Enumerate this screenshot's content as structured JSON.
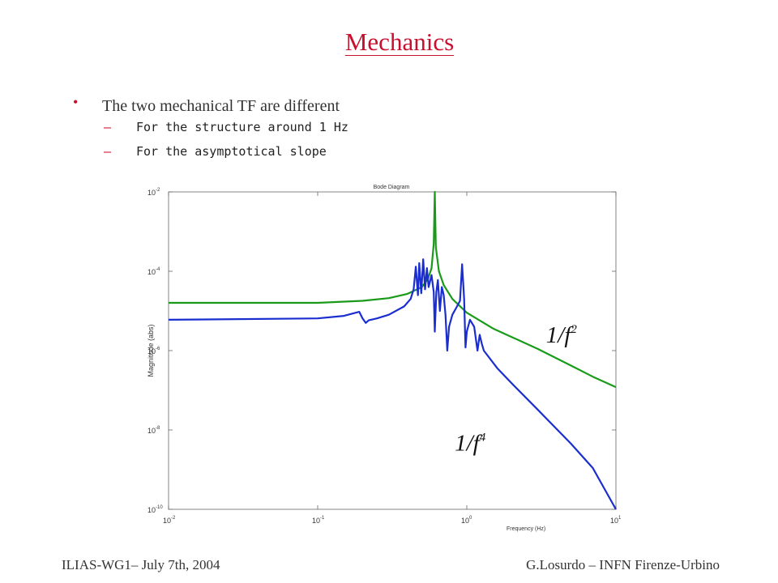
{
  "slide": {
    "title": "Mechanics",
    "bullet": "The two mechanical TF are different",
    "subbullets": [
      "For the structure around 1 Hz",
      "For the asymptotical slope"
    ],
    "footer_left": "ILIAS-WG1– July 7th, 2004",
    "footer_right": "G.Losurdo – INFN Firenze-Urbino"
  },
  "chart_data": {
    "type": "line",
    "title": "Bode Diagram",
    "xlabel": "Frequency (Hz)",
    "ylabel": "Magnitude (abs)",
    "xscale": "log",
    "yscale": "log",
    "xlim": [
      0.01,
      10
    ],
    "ylim": [
      1e-10,
      0.01
    ],
    "x_ticks": [
      {
        "value": 0.01,
        "base": "10",
        "exp": "-2"
      },
      {
        "value": 0.1,
        "base": "10",
        "exp": "-1"
      },
      {
        "value": 1,
        "base": "10",
        "exp": "0"
      },
      {
        "value": 10,
        "base": "10",
        "exp": "1"
      }
    ],
    "y_ticks": [
      {
        "value": 1e-10,
        "base": "10",
        "exp": "-10"
      },
      {
        "value": 1e-08,
        "base": "10",
        "exp": "-8"
      },
      {
        "value": 1e-06,
        "base": "10",
        "exp": "-6"
      },
      {
        "value": 0.0001,
        "base": "10",
        "exp": "-4"
      },
      {
        "value": 0.01,
        "base": "10",
        "exp": "-2"
      }
    ],
    "series": [
      {
        "color": "#1a9a1a",
        "points": [
          [
            0.01,
            1.6e-05
          ],
          [
            0.1,
            1.6e-05
          ],
          [
            0.2,
            1.8e-05
          ],
          [
            0.3,
            2.1e-05
          ],
          [
            0.4,
            2.7e-05
          ],
          [
            0.5,
            4e-05
          ],
          [
            0.55,
            6.5e-05
          ],
          [
            0.58,
            0.00012
          ],
          [
            0.6,
            0.0005
          ],
          [
            0.61,
            0.01
          ],
          [
            0.62,
            0.0004
          ],
          [
            0.65,
            0.0001
          ],
          [
            0.7,
            4.5e-05
          ],
          [
            0.8,
            2e-05
          ],
          [
            1.0,
            9e-06
          ],
          [
            1.5,
            3.6e-06
          ],
          [
            2,
            2.2e-06
          ],
          [
            3,
            1.1e-06
          ],
          [
            5,
            4.2e-07
          ],
          [
            7,
            2.2e-07
          ],
          [
            10,
            1.2e-07
          ]
        ]
      },
      {
        "color": "#1a2ed0",
        "points": [
          [
            0.01,
            6e-06
          ],
          [
            0.1,
            6.5e-06
          ],
          [
            0.15,
            7.5e-06
          ],
          [
            0.18,
            9e-06
          ],
          [
            0.19,
            9.5e-06
          ],
          [
            0.2,
            6.5e-06
          ],
          [
            0.21,
            5e-06
          ],
          [
            0.22,
            5.8e-06
          ],
          [
            0.25,
            6.5e-06
          ],
          [
            0.3,
            8e-06
          ],
          [
            0.38,
            1.3e-05
          ],
          [
            0.42,
            2e-05
          ],
          [
            0.44,
            3.5e-05
          ],
          [
            0.455,
            0.00013
          ],
          [
            0.47,
            2.5e-05
          ],
          [
            0.48,
            0.00016
          ],
          [
            0.495,
            2.8e-05
          ],
          [
            0.51,
            0.0002
          ],
          [
            0.525,
            3.5e-05
          ],
          [
            0.54,
            0.00012
          ],
          [
            0.555,
            4e-05
          ],
          [
            0.58,
            8e-05
          ],
          [
            0.6,
            3e-05
          ],
          [
            0.61,
            3e-06
          ],
          [
            0.625,
            3e-05
          ],
          [
            0.64,
            6e-05
          ],
          [
            0.66,
            1e-05
          ],
          [
            0.68,
            4e-05
          ],
          [
            0.7,
            2.5e-05
          ],
          [
            0.72,
            8e-06
          ],
          [
            0.74,
            1e-06
          ],
          [
            0.76,
            4e-06
          ],
          [
            0.8,
            8e-06
          ],
          [
            0.85,
            1.2e-05
          ],
          [
            0.9,
            1.8e-05
          ],
          [
            0.93,
            0.00015
          ],
          [
            0.96,
            2e-05
          ],
          [
            0.98,
            1.2e-06
          ],
          [
            1.0,
            3e-06
          ],
          [
            1.05,
            6e-06
          ],
          [
            1.12,
            4e-06
          ],
          [
            1.18,
            1e-06
          ],
          [
            1.22,
            2.5e-06
          ],
          [
            1.26,
            1.5e-06
          ],
          [
            1.3,
            1e-06
          ],
          [
            1.6,
            3.6e-07
          ],
          [
            2,
            1.5e-07
          ],
          [
            3,
            3.2e-08
          ],
          [
            5,
            4.5e-09
          ],
          [
            7,
            1.1e-09
          ],
          [
            10,
            1e-10
          ]
        ]
      }
    ],
    "annotations": [
      {
        "base": "1/f",
        "exp": "2",
        "x": 3.4,
        "y": 1.6e-06
      },
      {
        "base": "1/f",
        "exp": "4",
        "x": 0.83,
        "y": 3e-09
      }
    ]
  }
}
